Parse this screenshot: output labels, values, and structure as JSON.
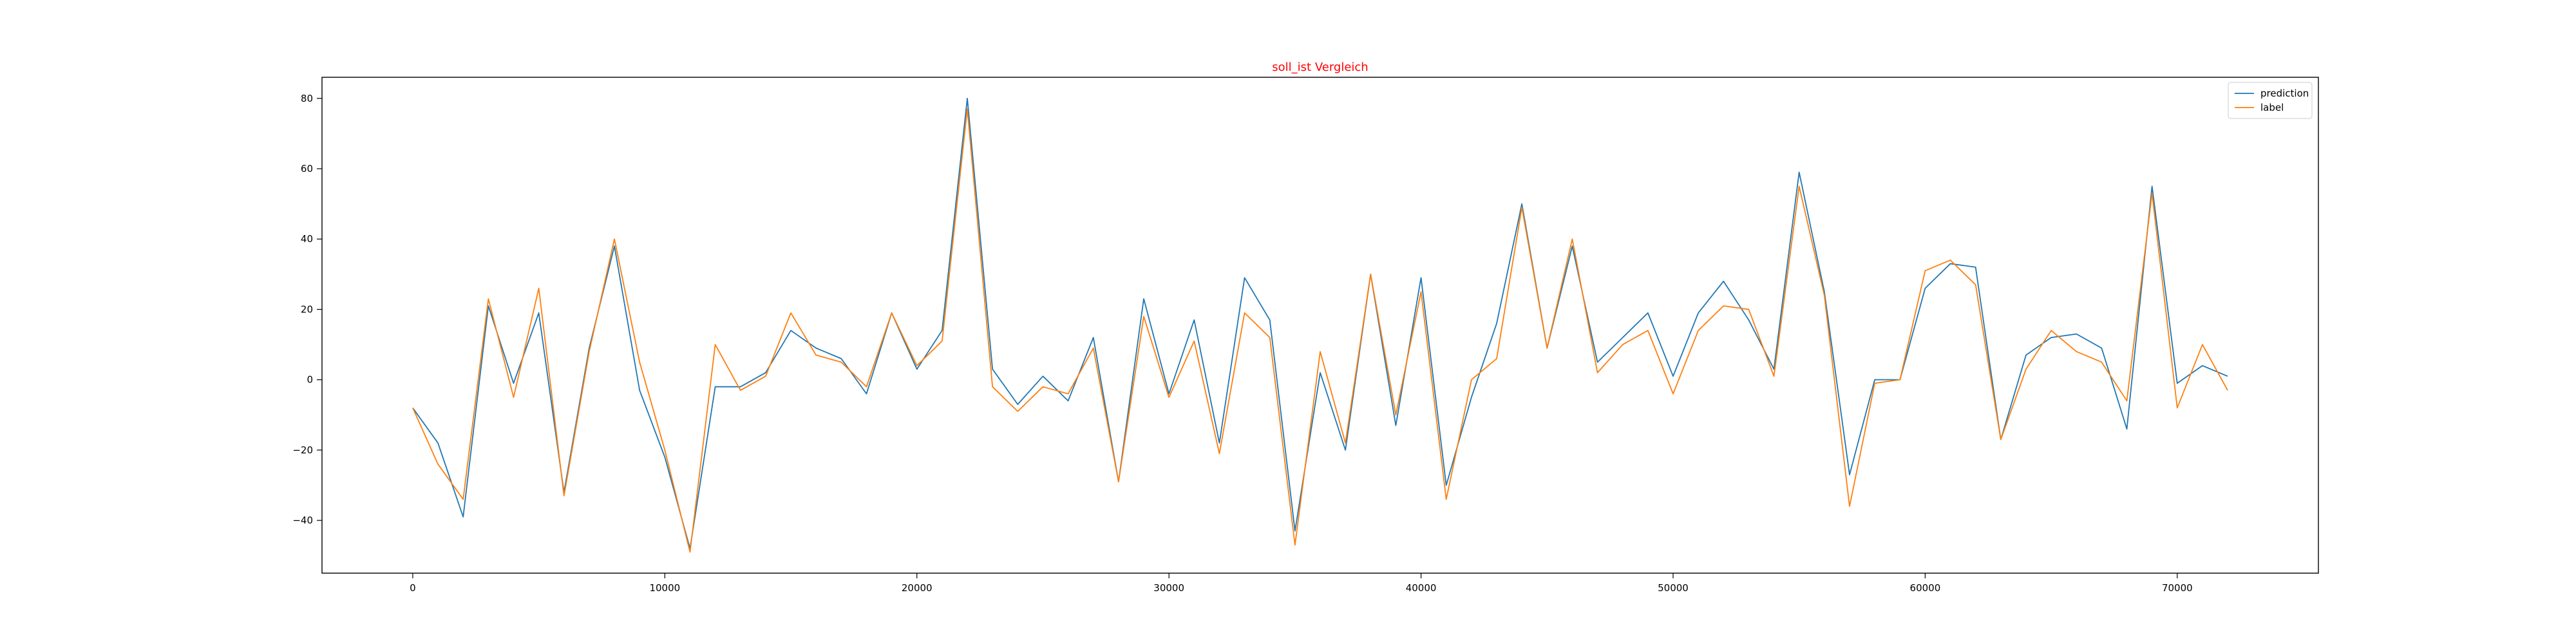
{
  "chart_data": {
    "type": "line",
    "title": "soll_ist Vergleich",
    "title_color": "#ff0000",
    "xlabel": "",
    "ylabel": "",
    "xlim": [
      -3600,
      75600
    ],
    "ylim": [
      -55,
      86
    ],
    "x_ticks": [
      0,
      10000,
      20000,
      30000,
      40000,
      50000,
      60000,
      70000
    ],
    "y_ticks": [
      -40,
      -20,
      0,
      20,
      40,
      60,
      80
    ],
    "grid": false,
    "legend_position": "top-right",
    "x": [
      0,
      1000,
      2000,
      3000,
      4000,
      5000,
      6000,
      7000,
      8000,
      9000,
      10000,
      11000,
      12000,
      13000,
      14000,
      15000,
      16000,
      17000,
      18000,
      19000,
      20000,
      21000,
      22000,
      23000,
      24000,
      25000,
      26000,
      27000,
      28000,
      29000,
      30000,
      31000,
      32000,
      33000,
      34000,
      35000,
      36000,
      37000,
      38000,
      39000,
      40000,
      41000,
      42000,
      43000,
      44000,
      45000,
      46000,
      47000,
      48000,
      49000,
      50000,
      51000,
      52000,
      53000,
      54000,
      55000,
      56000,
      57000,
      58000,
      59000,
      60000,
      61000,
      62000,
      63000,
      64000,
      65000,
      66000,
      67000,
      68000,
      69000,
      70000,
      71000,
      72000
    ],
    "series": [
      {
        "name": "prediction",
        "color": "#1f77b4",
        "values": [
          -8,
          -18,
          -39,
          21,
          -1,
          19,
          -32,
          9,
          38,
          -3,
          -22,
          -48,
          -2,
          -2,
          2,
          14,
          9,
          6,
          -4,
          19,
          3,
          14,
          80,
          3,
          -7,
          1,
          -6,
          12,
          -29,
          23,
          -4,
          17,
          -18,
          29,
          17,
          -43,
          2,
          -20,
          30,
          -13,
          29,
          -30,
          -5,
          16,
          50,
          9,
          38,
          5,
          12,
          19,
          1,
          19,
          28,
          17,
          3,
          59,
          25,
          -27,
          0,
          0,
          26,
          33,
          32,
          -17,
          7,
          12,
          13,
          9,
          -14,
          55,
          -1,
          4,
          1
        ]
      },
      {
        "name": "label",
        "color": "#ff7f0e",
        "values": [
          -8,
          -24,
          -34,
          23,
          -5,
          26,
          -33,
          8,
          40,
          5,
          -20,
          -49,
          10,
          -3,
          1,
          19,
          7,
          5,
          -2,
          19,
          4,
          11,
          77,
          -2,
          -9,
          -2,
          -4,
          9,
          -29,
          18,
          -5,
          11,
          -21,
          19,
          12,
          -47,
          8,
          -18,
          30,
          -10,
          25,
          -34,
          0,
          6,
          49,
          9,
          40,
          2,
          10,
          14,
          -4,
          14,
          21,
          20,
          1,
          55,
          24,
          -36,
          -1,
          0,
          31,
          34,
          27,
          -17,
          3,
          14,
          8,
          5,
          -6,
          53,
          -8,
          10,
          -3
        ]
      }
    ]
  }
}
